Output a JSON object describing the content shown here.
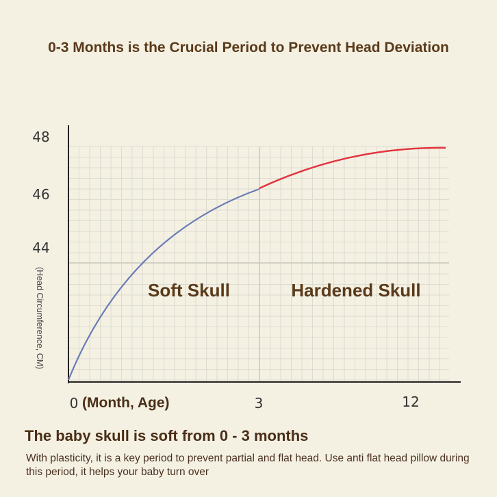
{
  "title": "0-3 Months is the Crucial Period to Prevent Head Deviation",
  "chart_data": {
    "type": "line",
    "title": "0-3 Months is the Crucial Period to Prevent Head Deviation",
    "xlabel": "(Month, Age)",
    "ylabel": "(Head Circumference, CM)",
    "x_ticks": [
      "0",
      "3",
      "12"
    ],
    "y_ticks": [
      "48",
      "46",
      "44"
    ],
    "regions": [
      {
        "label": "Soft Skull",
        "range": [
          "0",
          "3"
        ]
      },
      {
        "label": "Hardened Skull",
        "range": [
          "3",
          "12"
        ]
      }
    ],
    "series": [
      {
        "segment": "0-3 months",
        "color": "#6b7bb5",
        "points": [
          [
            0,
            0
          ],
          [
            3,
            46.3
          ]
        ]
      },
      {
        "segment": "3-12 months",
        "color": "#e3343f",
        "points": [
          [
            3,
            46.3
          ],
          [
            12,
            47.9
          ]
        ]
      }
    ],
    "grid": true
  },
  "footer": {
    "heading": "The baby skull is soft from 0 - 3 months",
    "description": "With plasticity, it is a key period to prevent partial and flat head. Use anti flat head pillow during this period, it helps your baby turn over"
  }
}
